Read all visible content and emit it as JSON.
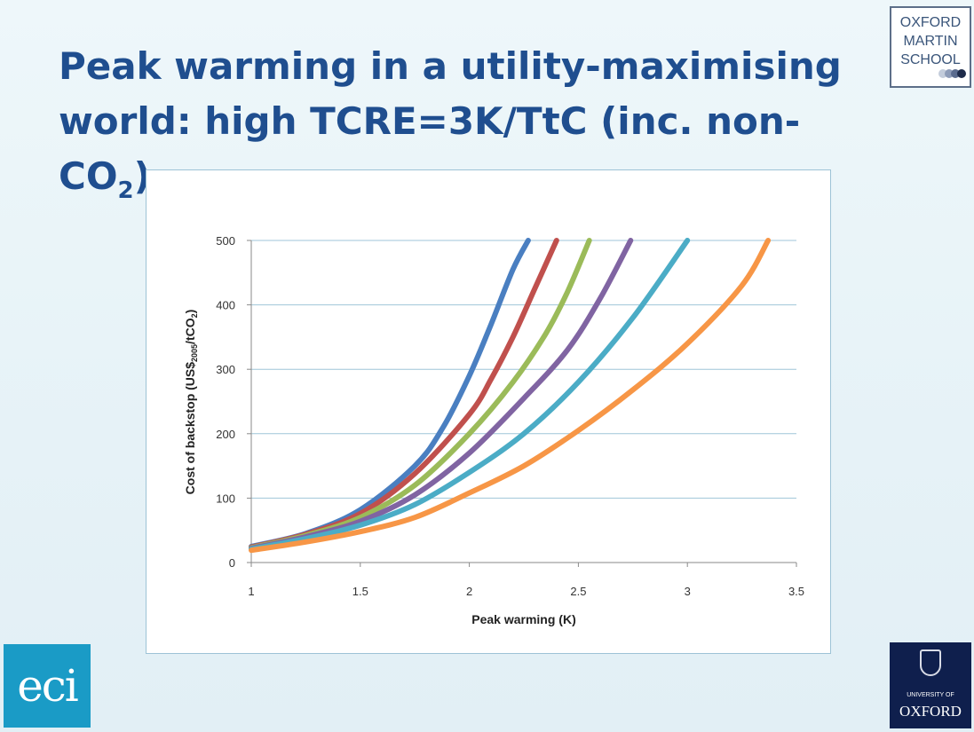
{
  "slide": {
    "title_line1": "Peak warming in a utility-maximising",
    "title_line2_main": "world: high TCRE=3K/TtC (inc. non-CO",
    "title_line2_sub": "2",
    "title_line2_end": ")"
  },
  "logos": {
    "oms_line1": "OXFORD",
    "oms_line2": "MARTIN",
    "oms_line3": "SCHOOL",
    "eci_text": "eci",
    "oxford_small": "UNIVERSITY OF",
    "oxford_big": "OXFORD"
  },
  "chart_data": {
    "type": "line",
    "title": "",
    "xlabel": "Peak warming (K)",
    "ylabel_prefix": "Cost of backstop (US$",
    "ylabel_sub": "2005",
    "ylabel_suffix": "/tCO",
    "ylabel_sub2": "2",
    "ylabel_end": ")",
    "xlim": [
      1,
      3.5
    ],
    "ylim": [
      0,
      500
    ],
    "xticks": [
      1,
      1.5,
      2,
      2.5,
      3,
      3.5
    ],
    "xtick_labels": [
      "1",
      "1.5",
      "2",
      "2.5",
      "3",
      "3.5"
    ],
    "yticks": [
      0,
      100,
      200,
      300,
      400,
      500
    ],
    "ytick_labels": [
      "0",
      "100",
      "200",
      "300",
      "400",
      "500"
    ],
    "grid": "horizontal",
    "legend": "none",
    "series": [
      {
        "color": "#4a7fc1",
        "x": [
          1.0,
          1.25,
          1.5,
          1.75,
          1.88,
          2.0,
          2.1,
          2.2,
          2.27
        ],
        "y": [
          25,
          45,
          82,
          150,
          210,
          290,
          370,
          455,
          500
        ]
      },
      {
        "color": "#c0504d",
        "x": [
          1.0,
          1.25,
          1.5,
          1.75,
          2.0,
          2.1,
          2.2,
          2.3,
          2.4
        ],
        "y": [
          24,
          44,
          76,
          138,
          230,
          285,
          350,
          425,
          500
        ]
      },
      {
        "color": "#9bbb59",
        "x": [
          1.0,
          1.25,
          1.5,
          1.75,
          2.0,
          2.2,
          2.35,
          2.45,
          2.55
        ],
        "y": [
          23,
          42,
          70,
          120,
          200,
          280,
          355,
          420,
          500
        ]
      },
      {
        "color": "#8064a2",
        "x": [
          1.0,
          1.25,
          1.5,
          1.75,
          2.0,
          2.25,
          2.45,
          2.6,
          2.74
        ],
        "y": [
          22,
          40,
          64,
          105,
          170,
          255,
          330,
          410,
          500
        ]
      },
      {
        "color": "#4bacc6",
        "x": [
          1.0,
          1.25,
          1.5,
          1.75,
          2.0,
          2.25,
          2.5,
          2.75,
          3.0
        ],
        "y": [
          21,
          37,
          58,
          90,
          140,
          200,
          280,
          380,
          500
        ]
      },
      {
        "color": "#f79646",
        "x": [
          1.0,
          1.25,
          1.5,
          1.75,
          2.0,
          2.25,
          2.5,
          2.75,
          3.0,
          3.25,
          3.37
        ],
        "y": [
          19,
          32,
          48,
          70,
          108,
          150,
          205,
          268,
          340,
          430,
          500
        ]
      }
    ]
  }
}
